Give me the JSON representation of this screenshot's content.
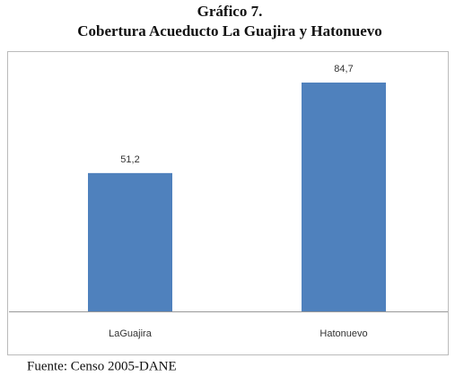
{
  "chart_data": {
    "type": "bar",
    "title": "Gráfico 7.",
    "subtitle": "Cobertura Acueducto La Guajira y Hatonuevo",
    "categories": [
      "LaGuajira",
      "Hatonuevo"
    ],
    "values": [
      51.2,
      84.7
    ],
    "value_labels": [
      "51,2",
      "84,7"
    ],
    "color": "#4f81bd",
    "source": "Fuente: Censo 2005-DANE"
  }
}
